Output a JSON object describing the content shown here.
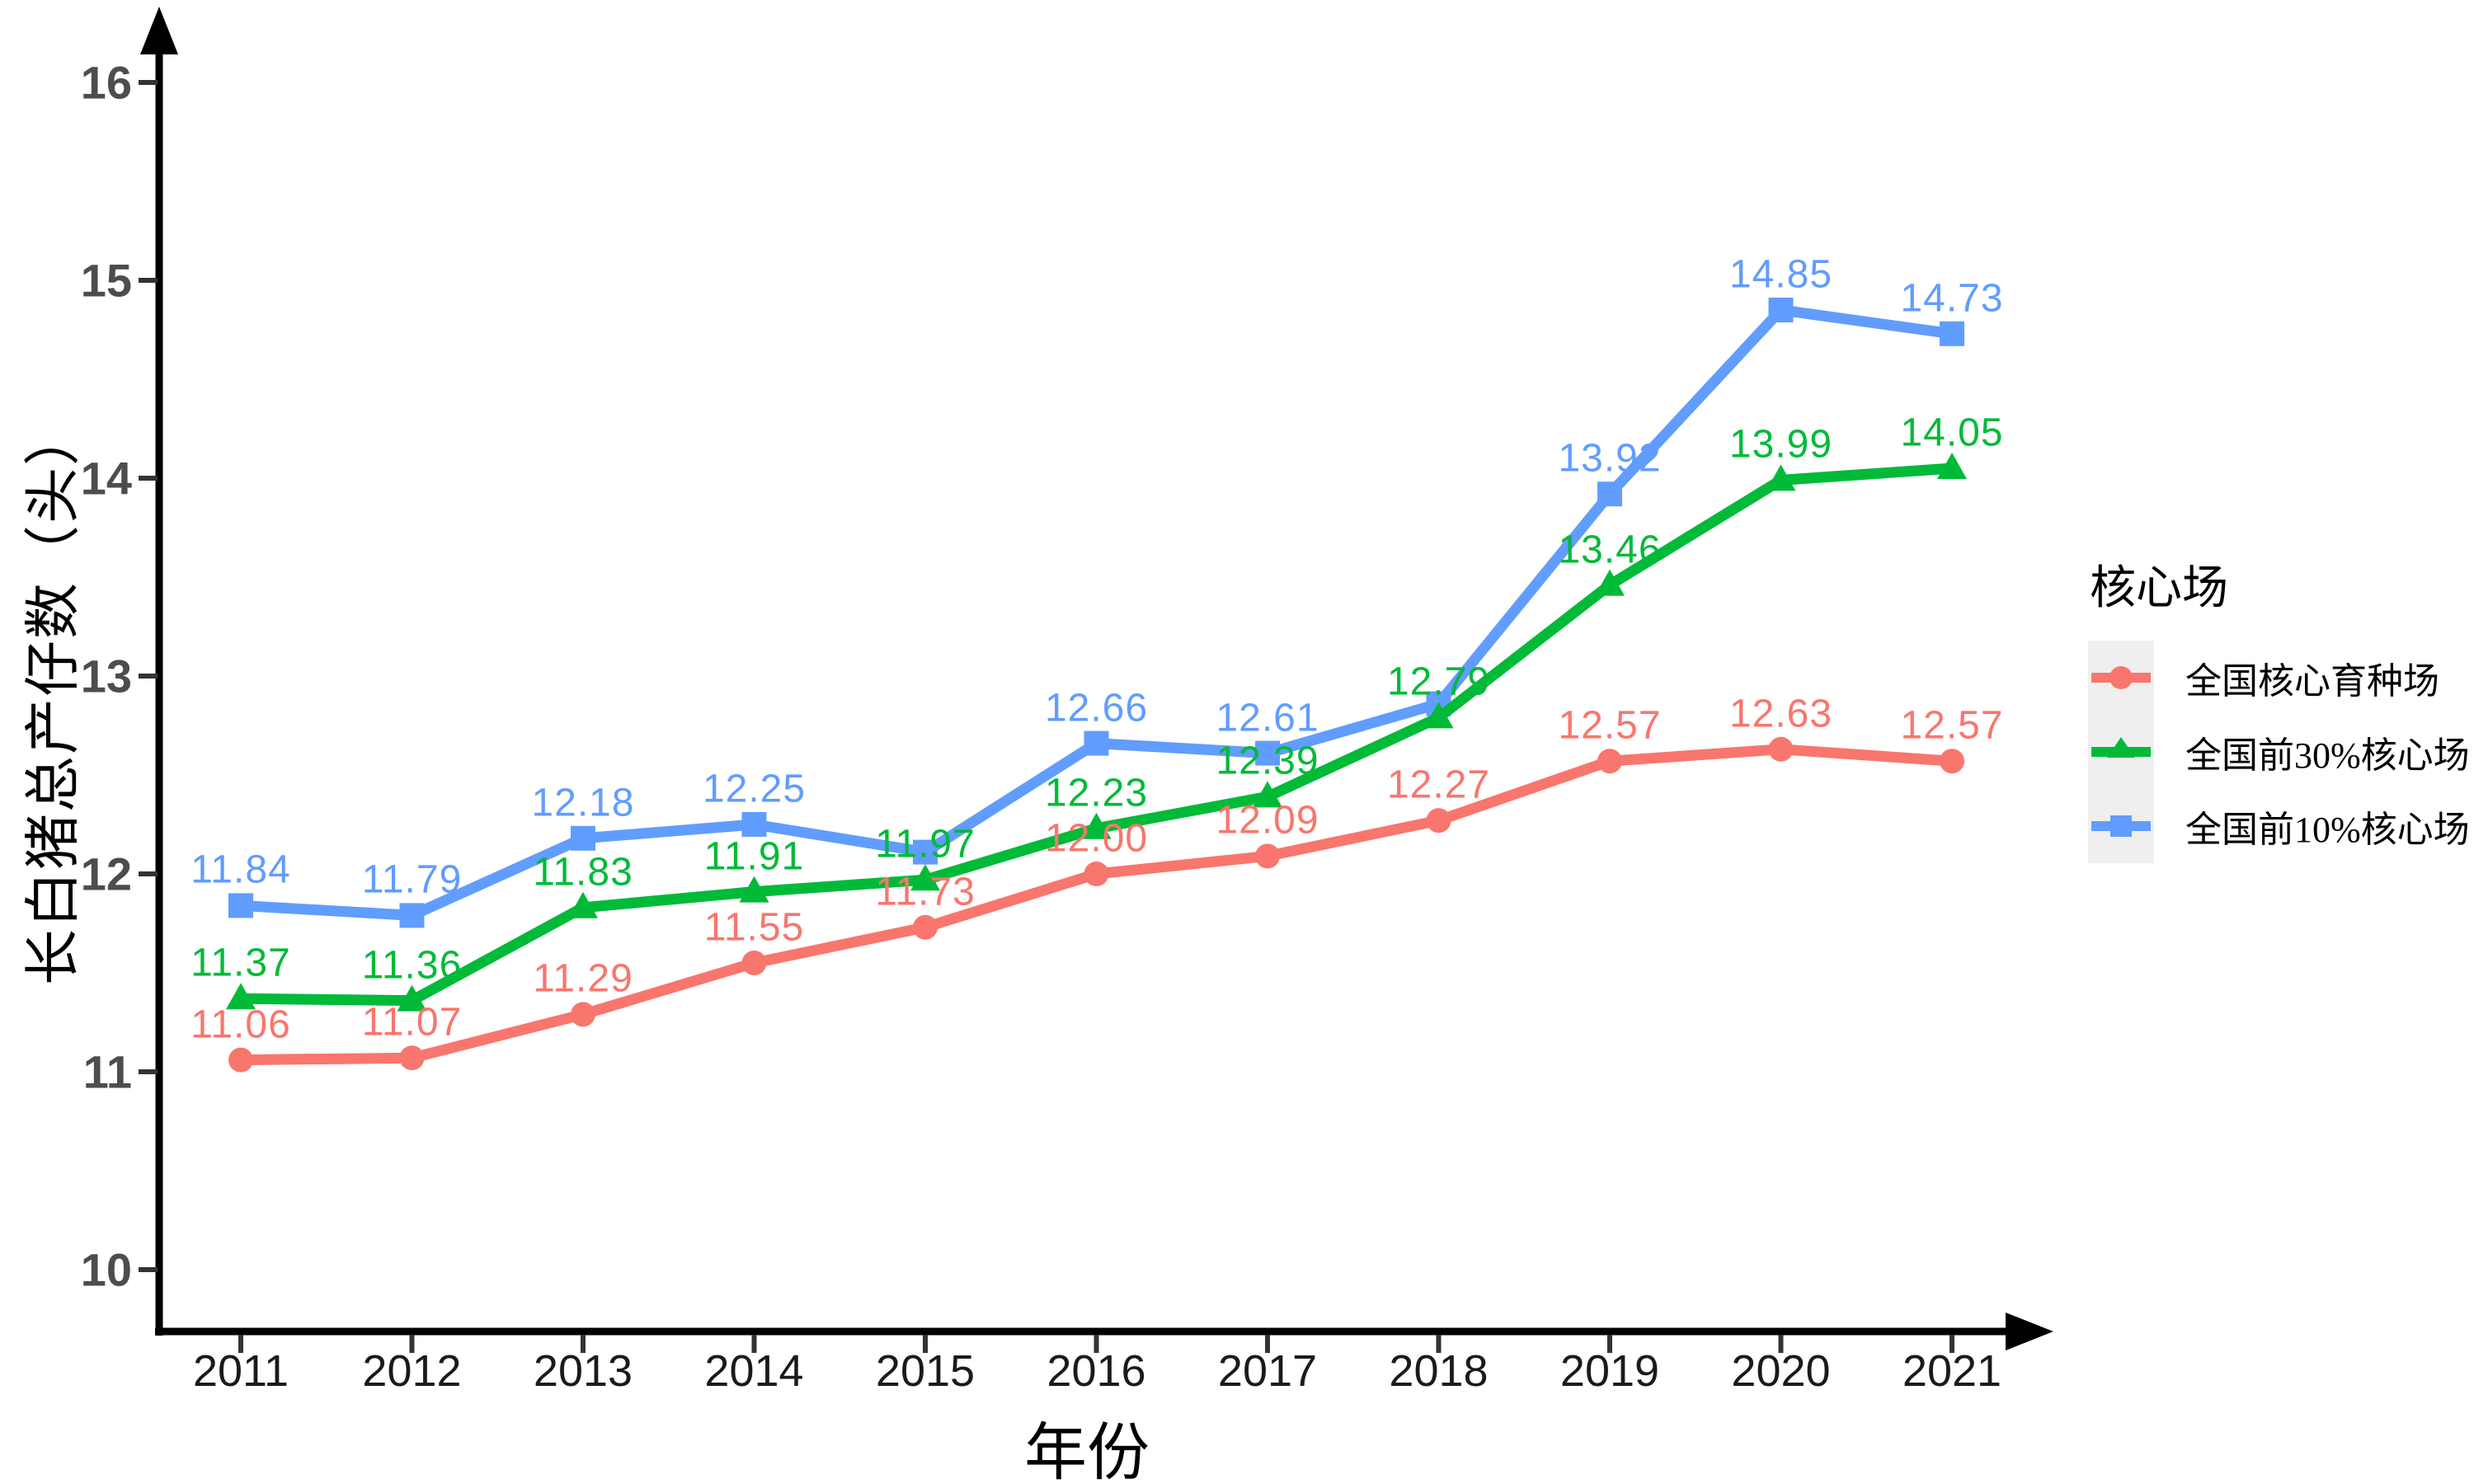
{
  "chart_data": {
    "type": "line",
    "title": "",
    "xlabel": "年份",
    "ylabel": "长白猪总产仔数（头）",
    "x": [
      2011,
      2012,
      2013,
      2014,
      2015,
      2016,
      2017,
      2018,
      2019,
      2020,
      2021
    ],
    "ylim": [
      10,
      16.4
    ],
    "yticks": [
      10,
      11,
      12,
      13,
      14,
      15,
      16
    ],
    "grid": false,
    "background": "#ffffff",
    "axis_color": "#000000",
    "tick_color": "#333333",
    "y_tick_label_color": "#4d4d4d",
    "x_tick_label_color": "#1a1a1a",
    "legend": {
      "title": "核心场",
      "position": "right",
      "key_fill": "#efefef"
    },
    "series": [
      {
        "name": "全国核心育种场",
        "color": "#F8766D",
        "marker": "circle",
        "values": [
          11.06,
          11.07,
          11.29,
          11.55,
          11.73,
          12.0,
          12.09,
          12.27,
          12.57,
          12.63,
          12.57
        ],
        "labels": [
          "11.06",
          "11.07",
          "11.29",
          "11.55",
          "11.73",
          "12.00",
          "12.09",
          "12.27",
          "12.57",
          "12.63",
          "12.57"
        ]
      },
      {
        "name": "全国前30%核心场",
        "color": "#00BA38",
        "marker": "triangle",
        "values": [
          11.37,
          11.36,
          11.83,
          11.91,
          11.97,
          12.23,
          12.39,
          12.79,
          13.46,
          13.99,
          14.05
        ],
        "labels": [
          "11.37",
          "11.36",
          "11.83",
          "11.91",
          "11.97",
          "12.23",
          "12.39",
          "12.79",
          "13.46",
          "13.99",
          "14.05"
        ]
      },
      {
        "name": "全国前10%核心场",
        "color": "#619CFF",
        "marker": "square",
        "values": [
          11.84,
          11.79,
          12.18,
          12.25,
          12.11,
          12.66,
          12.61,
          12.86,
          13.92,
          14.85,
          14.73
        ],
        "labels": [
          "11.84",
          "11.79",
          "12.18",
          "12.25",
          "",
          "12.66",
          "12.61",
          "",
          "13.92",
          "14.85",
          "14.73"
        ]
      }
    ]
  }
}
